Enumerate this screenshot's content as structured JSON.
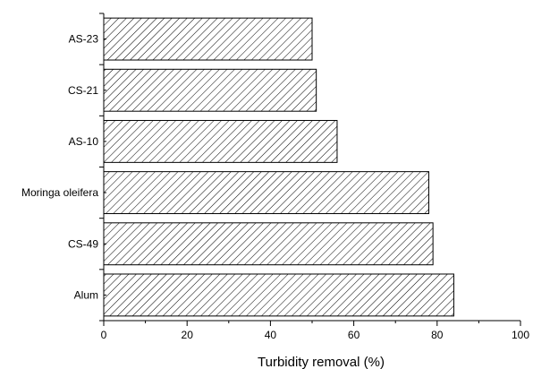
{
  "chart_data": {
    "type": "bar",
    "orientation": "horizontal",
    "categories": [
      "AS-23",
      "CS-21",
      "AS-10",
      "Moringa oleifera",
      "CS-49",
      "Alum"
    ],
    "values": [
      50,
      51,
      56,
      78,
      79,
      84
    ],
    "xlabel": "Turbidity removal (%)",
    "ylabel": "",
    "xlim": [
      0,
      100
    ],
    "x_ticks": [
      "0",
      "20",
      "40",
      "60",
      "80",
      "100"
    ],
    "grid": false,
    "bar_fill": "diagonal-hatch",
    "bar_color": "#000000"
  }
}
